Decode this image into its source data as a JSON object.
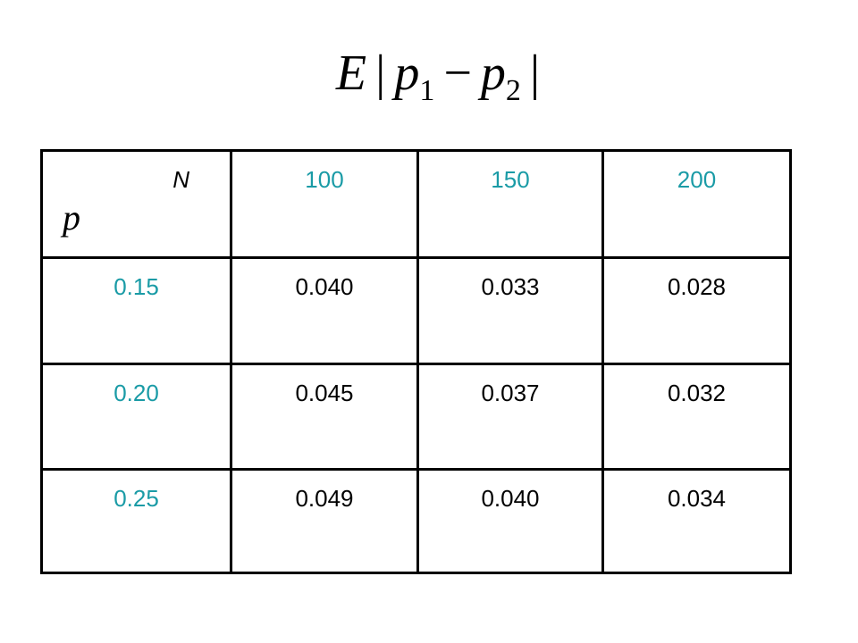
{
  "title": {
    "expectation": "E",
    "left_bar": "|",
    "var1": "p",
    "sub1": "1",
    "minus": "−",
    "var2": "p",
    "sub2": "2",
    "right_bar": "|"
  },
  "table": {
    "corner": {
      "column_variable": "N",
      "row_variable": "p"
    },
    "columns": [
      "100",
      "150",
      "200"
    ],
    "rows": [
      {
        "p": "0.15",
        "values": [
          "0.040",
          "0.033",
          "0.028"
        ]
      },
      {
        "p": "0.20",
        "values": [
          "0.045",
          "0.037",
          "0.032"
        ]
      },
      {
        "p": "0.25",
        "values": [
          "0.049",
          "0.040",
          "0.034"
        ]
      }
    ]
  }
}
